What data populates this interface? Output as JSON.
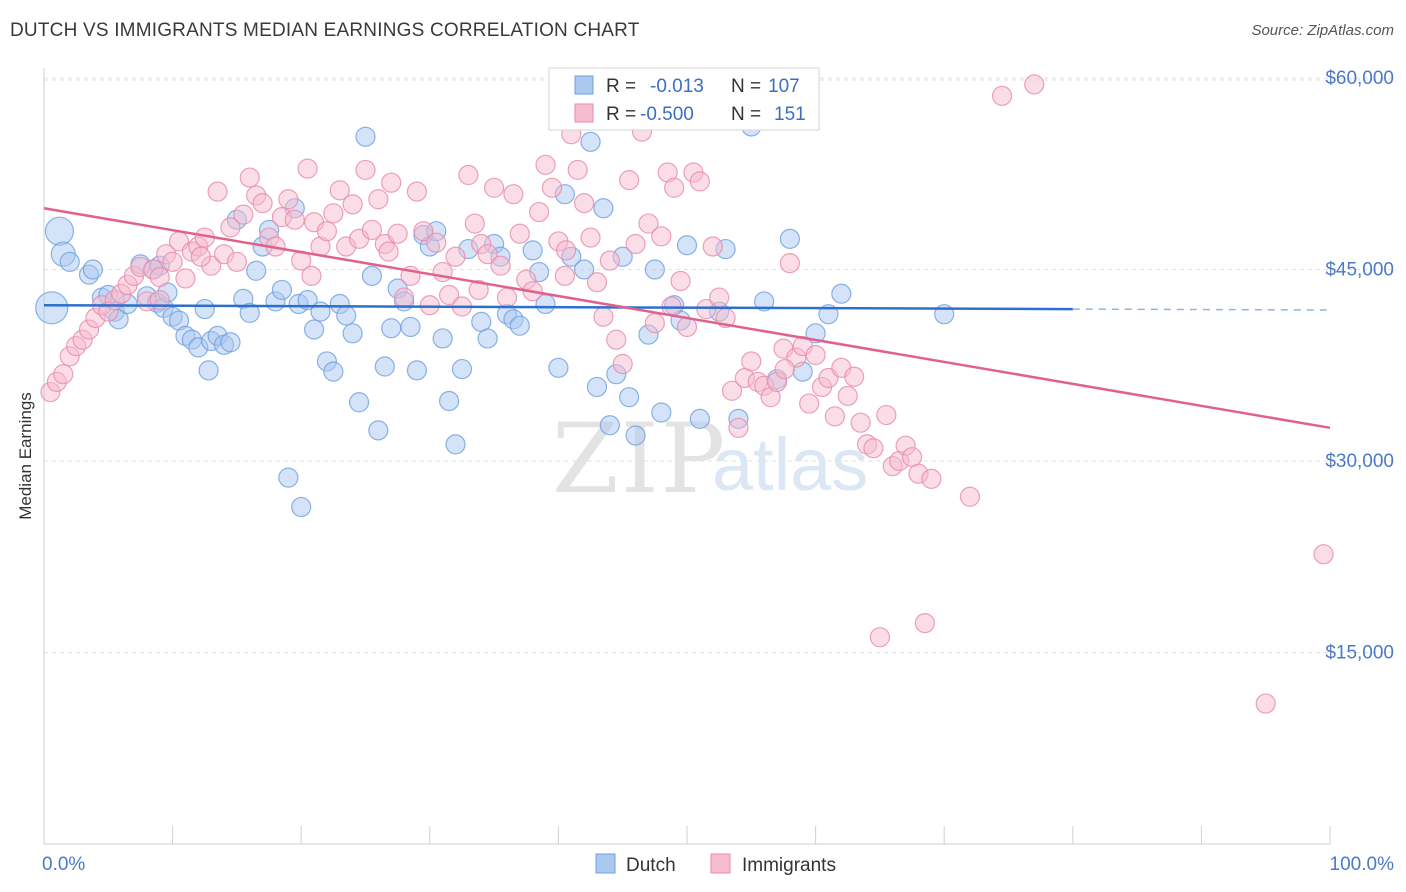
{
  "header": {
    "title": "DUTCH VS IMMIGRANTS MEDIAN EARNINGS CORRELATION CHART",
    "source": "Source: ZipAtlas.com"
  },
  "watermark": {
    "zip": "ZIP",
    "atlas": "atlas"
  },
  "legend": {
    "r_label": "R =",
    "n_label": "N =",
    "rows": [
      {
        "r": "-0.013",
        "n": "107"
      },
      {
        "r": "-0.500",
        "n": "151"
      }
    ]
  },
  "chart_data": {
    "type": "scatter",
    "title": "DUTCH VS IMMIGRANTS MEDIAN EARNINGS CORRELATION CHART",
    "xlabel": "",
    "ylabel": "Median Earnings",
    "xlim": [
      0,
      100
    ],
    "ylim": [
      0,
      62500
    ],
    "x_tick_labels": [
      "0.0%",
      "100.0%"
    ],
    "y_ticks": [
      15000,
      30000,
      45000,
      60000
    ],
    "y_tick_labels": [
      "$15,000",
      "$30,000",
      "$45,000",
      "$60,000"
    ],
    "grid": true,
    "legend_position": "top-center",
    "series": [
      {
        "name": "Dutch",
        "color": "#6f9fe0",
        "fill": "#aac8f0",
        "r": -0.013,
        "n": 107,
        "trend": {
          "x": [
            0,
            80
          ],
          "y": [
            42200,
            41900
          ],
          "dashed_extension_to": 100
        },
        "points": [
          [
            1.2,
            48000
          ],
          [
            1.5,
            46200
          ],
          [
            2.0,
            45600
          ],
          [
            3.5,
            44600
          ],
          [
            3.8,
            45000
          ],
          [
            4.5,
            42800
          ],
          [
            5.0,
            43000
          ],
          [
            5.5,
            41700
          ],
          [
            5.8,
            41100
          ],
          [
            6.5,
            42300
          ],
          [
            7.5,
            45400
          ],
          [
            8.0,
            42900
          ],
          [
            8.5,
            45000
          ],
          [
            8.8,
            42400
          ],
          [
            9.0,
            45300
          ],
          [
            9.3,
            42000
          ],
          [
            9.6,
            43200
          ],
          [
            10.0,
            41300
          ],
          [
            10.5,
            41000
          ],
          [
            11.0,
            39800
          ],
          [
            11.5,
            39500
          ],
          [
            12.0,
            38900
          ],
          [
            12.5,
            41900
          ],
          [
            12.8,
            37100
          ],
          [
            13.0,
            39400
          ],
          [
            13.5,
            39800
          ],
          [
            14.0,
            39100
          ],
          [
            14.5,
            39300
          ],
          [
            15.0,
            48900
          ],
          [
            15.5,
            42700
          ],
          [
            16.0,
            41600
          ],
          [
            16.5,
            44900
          ],
          [
            17.0,
            46800
          ],
          [
            17.5,
            48100
          ],
          [
            18.0,
            42500
          ],
          [
            18.5,
            43400
          ],
          [
            19.0,
            28700
          ],
          [
            19.5,
            49800
          ],
          [
            19.8,
            42300
          ],
          [
            20.0,
            26400
          ],
          [
            20.5,
            42600
          ],
          [
            21.0,
            40300
          ],
          [
            21.5,
            41700
          ],
          [
            22.0,
            37800
          ],
          [
            22.5,
            37000
          ],
          [
            23.0,
            42300
          ],
          [
            23.5,
            41400
          ],
          [
            24.0,
            40000
          ],
          [
            24.5,
            34600
          ],
          [
            25.0,
            55400
          ],
          [
            25.5,
            44500
          ],
          [
            26.0,
            32400
          ],
          [
            26.5,
            37400
          ],
          [
            27.0,
            40400
          ],
          [
            27.5,
            43500
          ],
          [
            28.0,
            42500
          ],
          [
            28.5,
            40500
          ],
          [
            29.0,
            37100
          ],
          [
            29.5,
            47700
          ],
          [
            30.0,
            46800
          ],
          [
            30.5,
            48000
          ],
          [
            31.0,
            39600
          ],
          [
            31.5,
            34700
          ],
          [
            32.0,
            31300
          ],
          [
            32.5,
            37200
          ],
          [
            33.0,
            46600
          ],
          [
            34.0,
            40900
          ],
          [
            34.5,
            39600
          ],
          [
            35.0,
            47000
          ],
          [
            35.5,
            46000
          ],
          [
            36.0,
            41500
          ],
          [
            36.5,
            41100
          ],
          [
            37.0,
            40600
          ],
          [
            38.0,
            46500
          ],
          [
            38.5,
            44800
          ],
          [
            39.0,
            42300
          ],
          [
            40.0,
            37300
          ],
          [
            40.5,
            50900
          ],
          [
            41.0,
            46000
          ],
          [
            42.0,
            45000
          ],
          [
            42.5,
            55000
          ],
          [
            43.0,
            35800
          ],
          [
            43.5,
            49800
          ],
          [
            44.0,
            32800
          ],
          [
            44.5,
            36800
          ],
          [
            45.0,
            46000
          ],
          [
            45.5,
            35000
          ],
          [
            46.0,
            32000
          ],
          [
            47.0,
            39900
          ],
          [
            47.5,
            45000
          ],
          [
            48.0,
            33800
          ],
          [
            49.0,
            42200
          ],
          [
            49.5,
            41000
          ],
          [
            50.0,
            46900
          ],
          [
            51.0,
            33300
          ],
          [
            52.5,
            41700
          ],
          [
            53.0,
            46600
          ],
          [
            54.0,
            33300
          ],
          [
            55.0,
            56200
          ],
          [
            57.0,
            36400
          ],
          [
            58.0,
            47400
          ],
          [
            59.0,
            37000
          ],
          [
            60.0,
            40000
          ],
          [
            61.0,
            41500
          ],
          [
            62.0,
            43100
          ],
          [
            70.0,
            41500
          ],
          [
            56.0,
            42500
          ]
        ]
      },
      {
        "name": "Immigrants",
        "color": "#e88aaa",
        "fill": "#f6bcd0",
        "r": -0.5,
        "n": 151,
        "trend": {
          "x": [
            0,
            100
          ],
          "y": [
            49800,
            32600
          ]
        },
        "points": [
          [
            0.5,
            35400
          ],
          [
            1.0,
            36200
          ],
          [
            1.5,
            36800
          ],
          [
            2.0,
            38200
          ],
          [
            2.5,
            39000
          ],
          [
            3.0,
            39500
          ],
          [
            3.5,
            40300
          ],
          [
            4.0,
            41200
          ],
          [
            4.5,
            42200
          ],
          [
            5.0,
            41700
          ],
          [
            5.5,
            42600
          ],
          [
            6.0,
            43100
          ],
          [
            6.5,
            43800
          ],
          [
            7.0,
            44500
          ],
          [
            7.5,
            45200
          ],
          [
            8.0,
            42500
          ],
          [
            8.5,
            45000
          ],
          [
            9.0,
            44400
          ],
          [
            9.5,
            46200
          ],
          [
            10.0,
            45600
          ],
          [
            10.5,
            47200
          ],
          [
            11.0,
            44300
          ],
          [
            11.5,
            46400
          ],
          [
            12.0,
            46800
          ],
          [
            12.5,
            47500
          ],
          [
            13.0,
            45300
          ],
          [
            13.5,
            51100
          ],
          [
            14.0,
            46200
          ],
          [
            14.5,
            48300
          ],
          [
            15.0,
            45600
          ],
          [
            15.5,
            49300
          ],
          [
            16.0,
            52200
          ],
          [
            16.5,
            50800
          ],
          [
            17.0,
            50200
          ],
          [
            17.5,
            47500
          ],
          [
            18.0,
            46800
          ],
          [
            18.5,
            49100
          ],
          [
            19.0,
            50500
          ],
          [
            19.5,
            48900
          ],
          [
            20.0,
            45700
          ],
          [
            20.5,
            52900
          ],
          [
            21.0,
            48700
          ],
          [
            21.5,
            46800
          ],
          [
            22.0,
            48000
          ],
          [
            22.5,
            49400
          ],
          [
            23.0,
            51200
          ],
          [
            23.5,
            46800
          ],
          [
            24.0,
            50100
          ],
          [
            24.5,
            47400
          ],
          [
            25.0,
            52800
          ],
          [
            25.5,
            48100
          ],
          [
            26.0,
            50500
          ],
          [
            26.5,
            47000
          ],
          [
            27.0,
            51800
          ],
          [
            27.5,
            47800
          ],
          [
            28.0,
            42800
          ],
          [
            28.5,
            44500
          ],
          [
            29.0,
            51100
          ],
          [
            29.5,
            48000
          ],
          [
            30.0,
            42200
          ],
          [
            30.5,
            47100
          ],
          [
            31.0,
            44800
          ],
          [
            31.5,
            43000
          ],
          [
            32.0,
            46000
          ],
          [
            32.5,
            42100
          ],
          [
            33.0,
            52400
          ],
          [
            33.5,
            48600
          ],
          [
            34.0,
            47000
          ],
          [
            34.5,
            46200
          ],
          [
            35.0,
            51400
          ],
          [
            35.5,
            45300
          ],
          [
            36.0,
            42800
          ],
          [
            36.5,
            50900
          ],
          [
            37.0,
            47800
          ],
          [
            37.5,
            44200
          ],
          [
            38.0,
            43300
          ],
          [
            38.5,
            49500
          ],
          [
            39.0,
            53200
          ],
          [
            39.5,
            51400
          ],
          [
            40.0,
            47200
          ],
          [
            40.5,
            44500
          ],
          [
            41.0,
            55600
          ],
          [
            41.5,
            52800
          ],
          [
            42.0,
            50200
          ],
          [
            42.5,
            47500
          ],
          [
            43.0,
            44000
          ],
          [
            43.5,
            41300
          ],
          [
            44.0,
            45700
          ],
          [
            44.5,
            39500
          ],
          [
            45.0,
            37600
          ],
          [
            45.5,
            52000
          ],
          [
            46.0,
            47000
          ],
          [
            46.5,
            55800
          ],
          [
            47.0,
            48600
          ],
          [
            47.5,
            40800
          ],
          [
            48.0,
            47600
          ],
          [
            48.5,
            52600
          ],
          [
            49.0,
            51400
          ],
          [
            49.5,
            44100
          ],
          [
            50.0,
            40500
          ],
          [
            50.5,
            52600
          ],
          [
            51.0,
            51900
          ],
          [
            51.5,
            41900
          ],
          [
            52.0,
            46800
          ],
          [
            52.5,
            42800
          ],
          [
            53.0,
            41200
          ],
          [
            53.5,
            35500
          ],
          [
            54.0,
            32600
          ],
          [
            54.5,
            36500
          ],
          [
            55.0,
            37800
          ],
          [
            55.5,
            36200
          ],
          [
            56.0,
            35900
          ],
          [
            56.5,
            35000
          ],
          [
            57.0,
            36200
          ],
          [
            57.5,
            38800
          ],
          [
            58.0,
            45500
          ],
          [
            58.5,
            38100
          ],
          [
            59.0,
            39000
          ],
          [
            59.5,
            34500
          ],
          [
            60.0,
            38300
          ],
          [
            60.5,
            35800
          ],
          [
            61.0,
            36500
          ],
          [
            61.5,
            33500
          ],
          [
            62.0,
            37300
          ],
          [
            62.5,
            35100
          ],
          [
            63.0,
            36600
          ],
          [
            63.5,
            33000
          ],
          [
            64.0,
            31300
          ],
          [
            64.5,
            31000
          ],
          [
            65.0,
            16200
          ],
          [
            65.5,
            33600
          ],
          [
            66.0,
            29600
          ],
          [
            66.5,
            30000
          ],
          [
            67.0,
            31200
          ],
          [
            67.5,
            30300
          ],
          [
            68.0,
            29000
          ],
          [
            68.5,
            17300
          ],
          [
            69.0,
            28600
          ],
          [
            72.0,
            27200
          ],
          [
            74.5,
            58600
          ],
          [
            77.0,
            59500
          ],
          [
            95.0,
            11000
          ],
          [
            99.5,
            22700
          ],
          [
            9.0,
            42600
          ],
          [
            12.2,
            46000
          ],
          [
            26.8,
            46400
          ],
          [
            33.8,
            43400
          ],
          [
            48.8,
            42100
          ],
          [
            40.6,
            46500
          ],
          [
            20.8,
            44500
          ],
          [
            57.6,
            37200
          ]
        ]
      }
    ]
  }
}
